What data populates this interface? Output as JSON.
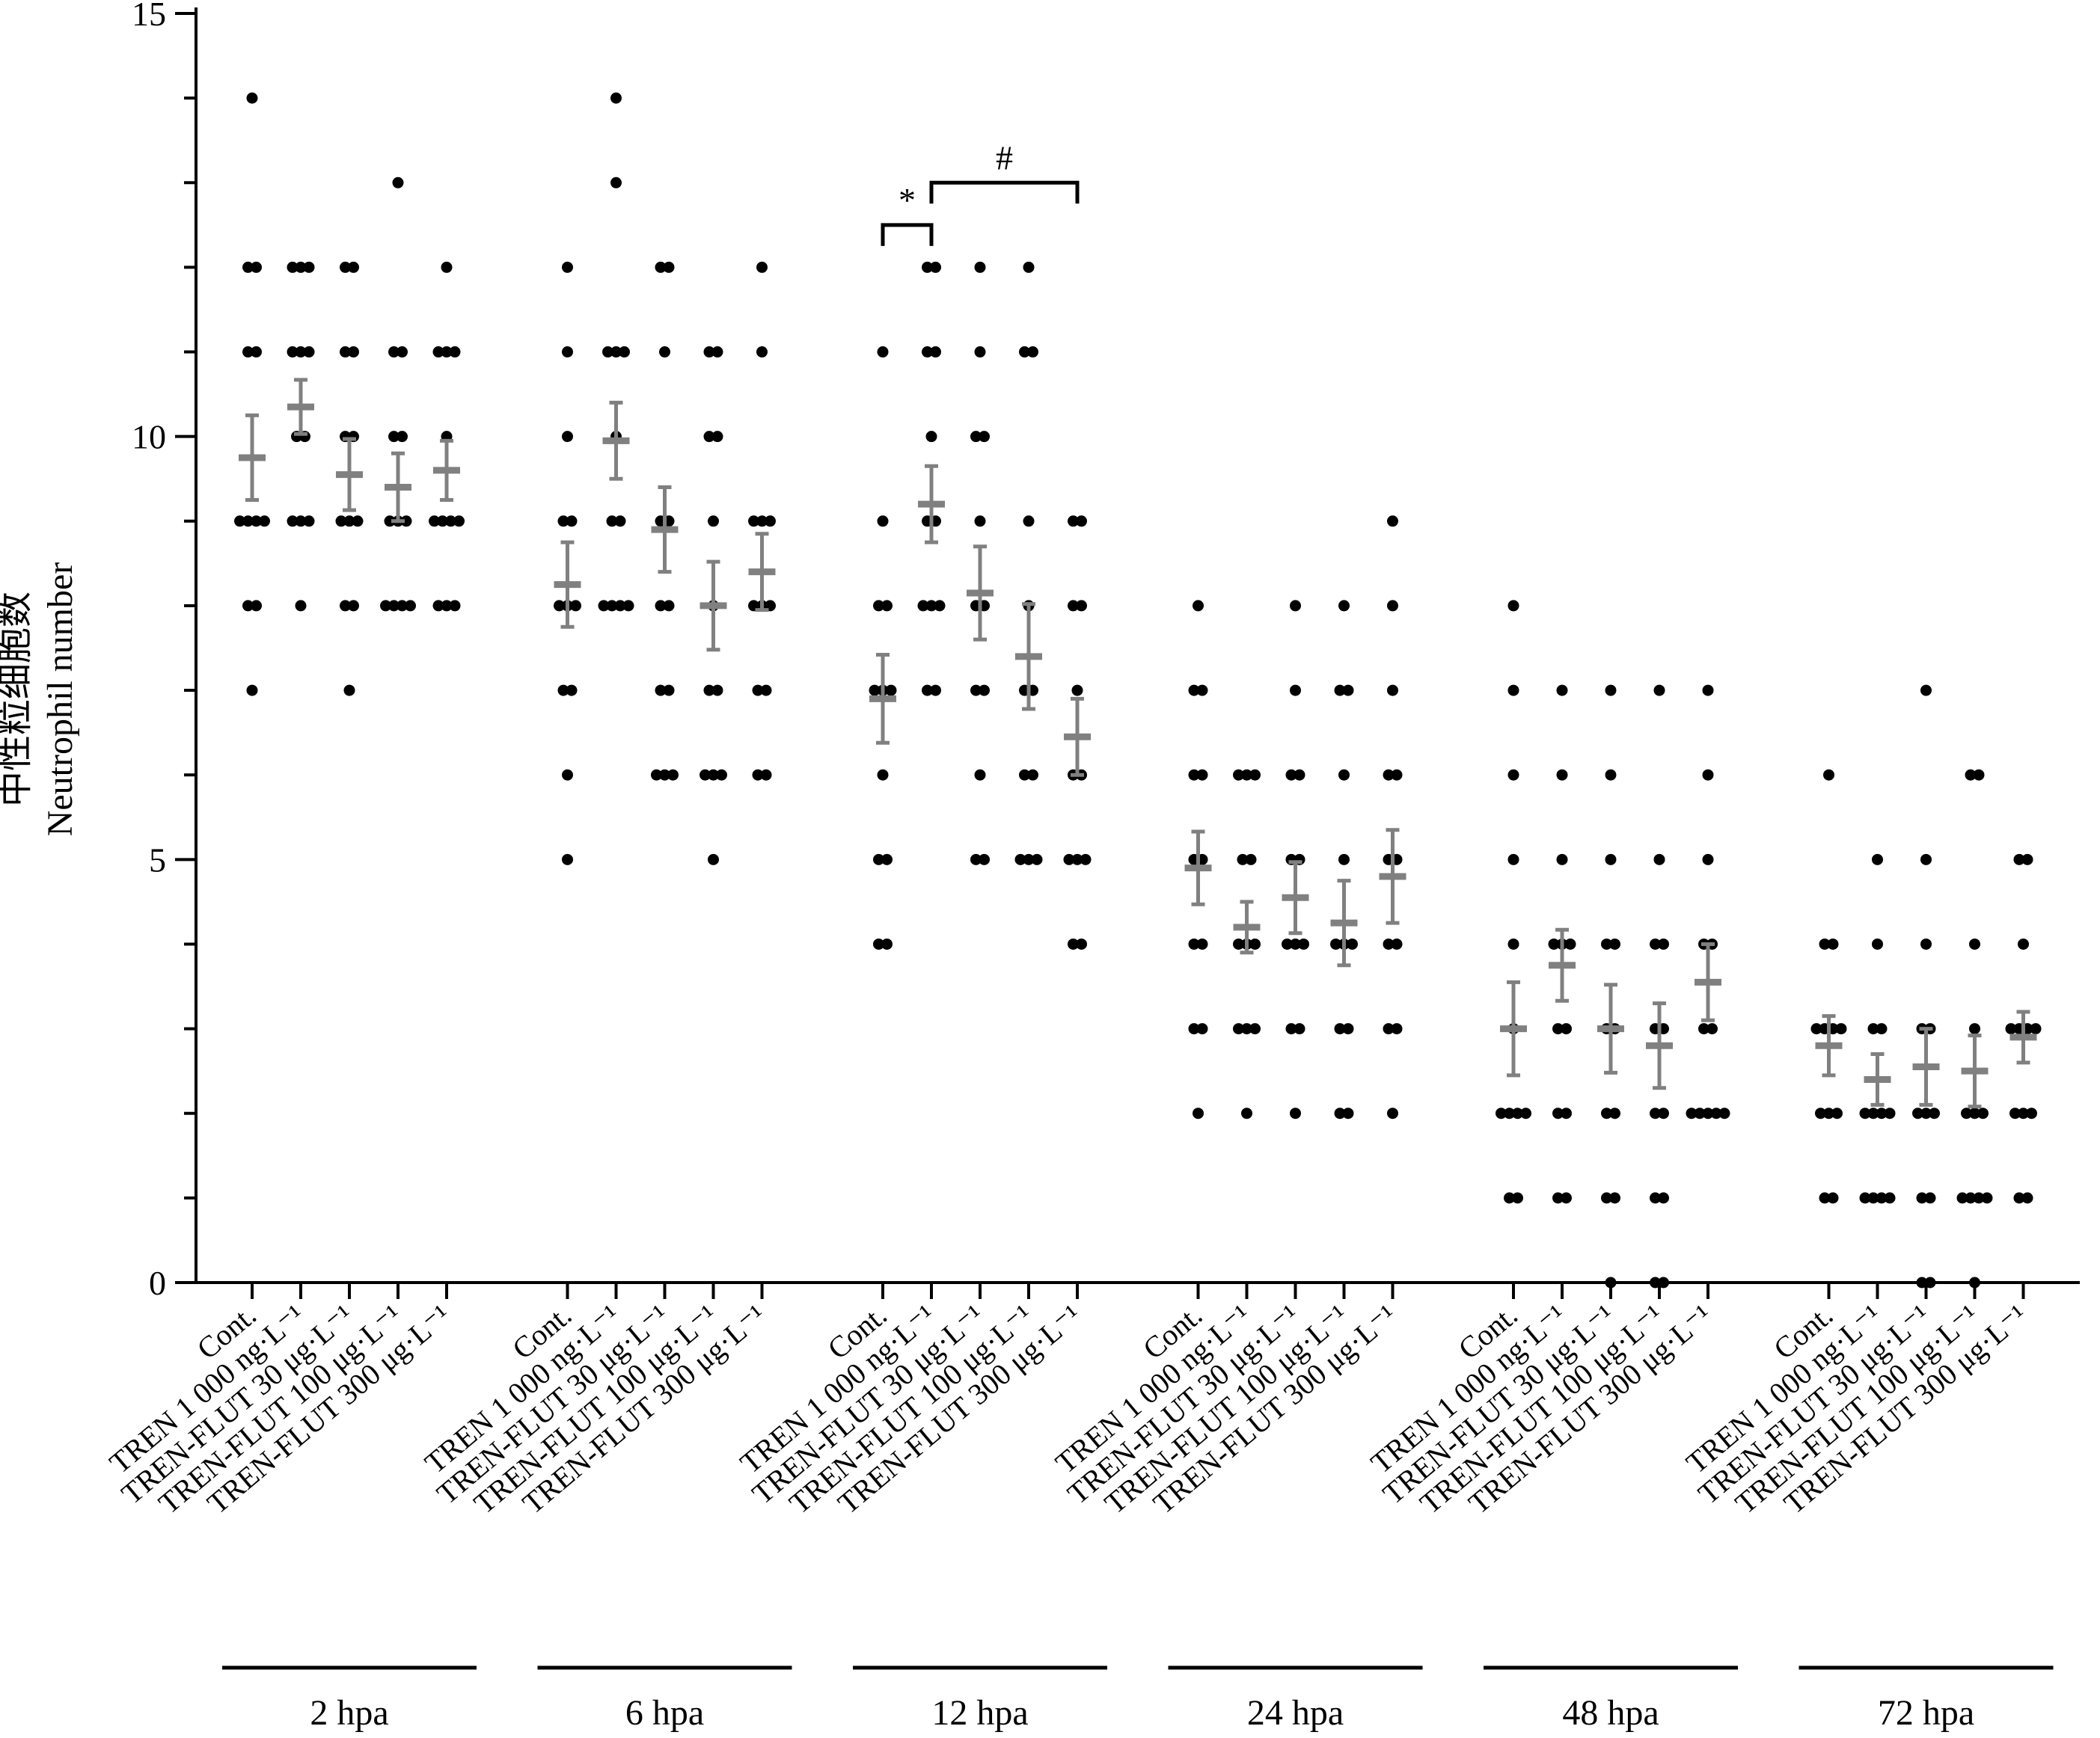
{
  "chart_data": {
    "type": "scatter",
    "y_axis": {
      "title_lines": [
        "中性粒细胞数",
        "Neutrophil number"
      ],
      "ylim": [
        0,
        15
      ],
      "ticks": [
        0,
        5,
        10,
        15
      ],
      "tick_labels": [
        "0",
        "5",
        "10",
        "15"
      ]
    },
    "categories": [
      "Cont.",
      "TREN 1 000 ng·L⁻¹",
      "TREN-FLUT 30 μg·L⁻¹",
      "TREN-FLUT 100 μg·L⁻¹",
      "TREN-FLUT 300 μg·L⁻¹"
    ],
    "colors": {
      "points": "#000000",
      "mean_sem": "#808080",
      "axis": "#000000"
    },
    "groups": [
      {
        "label": "2 hpa",
        "series": [
          {
            "points": [
              14,
              12,
              12,
              11,
              11,
              9,
              9,
              9,
              9,
              8,
              8,
              7
            ],
            "mean": 9.75,
            "sem": 0.5
          },
          {
            "points": [
              12,
              12,
              12,
              11,
              11,
              11,
              10,
              10,
              9,
              9,
              9,
              8
            ],
            "mean": 10.35,
            "sem": 0.32
          },
          {
            "points": [
              12,
              12,
              11,
              11,
              10,
              10,
              9,
              9,
              9,
              8,
              8,
              7
            ],
            "mean": 9.55,
            "sem": 0.42
          },
          {
            "points": [
              13,
              11,
              11,
              10,
              10,
              9,
              9,
              9,
              8,
              8,
              8,
              8
            ],
            "mean": 9.4,
            "sem": 0.4
          },
          {
            "points": [
              12,
              11,
              11,
              11,
              10,
              9,
              9,
              9,
              9,
              8,
              8,
              8
            ],
            "mean": 9.6,
            "sem": 0.35
          }
        ]
      },
      {
        "label": "6 hpa",
        "series": [
          {
            "points": [
              12,
              11,
              10,
              9,
              9,
              8,
              8,
              8,
              7,
              7,
              6,
              5
            ],
            "mean": 8.25,
            "sem": 0.5
          },
          {
            "points": [
              14,
              13,
              11,
              11,
              11,
              10,
              9,
              9,
              8,
              8,
              8,
              8
            ],
            "mean": 9.95,
            "sem": 0.45
          },
          {
            "points": [
              12,
              12,
              11,
              9,
              9,
              8,
              8,
              7,
              7,
              6,
              6,
              6
            ],
            "mean": 8.9,
            "sem": 0.5
          },
          {
            "points": [
              11,
              11,
              10,
              10,
              9,
              8,
              7,
              7,
              6,
              6,
              6,
              5
            ],
            "mean": 8.0,
            "sem": 0.52
          },
          {
            "points": [
              12,
              11,
              9,
              9,
              9,
              8,
              8,
              8,
              7,
              7,
              6,
              6
            ],
            "mean": 8.4,
            "sem": 0.45
          }
        ]
      },
      {
        "label": "12 hpa",
        "series": [
          {
            "points": [
              11,
              9,
              8,
              8,
              7,
              7,
              7,
              6,
              5,
              5,
              4,
              4
            ],
            "mean": 6.9,
            "sem": 0.52
          },
          {
            "points": [
              12,
              12,
              11,
              11,
              10,
              9,
              9,
              8,
              8,
              8,
              7,
              7
            ],
            "mean": 9.2,
            "sem": 0.45
          },
          {
            "points": [
              12,
              11,
              10,
              10,
              9,
              8,
              8,
              7,
              7,
              6,
              5,
              5
            ],
            "mean": 8.15,
            "sem": 0.55
          },
          {
            "points": [
              12,
              11,
              11,
              9,
              8,
              7,
              7,
              6,
              6,
              5,
              5,
              5
            ],
            "mean": 7.4,
            "sem": 0.62
          },
          {
            "points": [
              9,
              9,
              8,
              8,
              7,
              6,
              6,
              5,
              5,
              5,
              4,
              4
            ],
            "mean": 6.45,
            "sem": 0.45
          }
        ]
      },
      {
        "label": "24 hpa",
        "series": [
          {
            "points": [
              8,
              7,
              7,
              6,
              6,
              5,
              5,
              4,
              4,
              3,
              3,
              2
            ],
            "mean": 4.9,
            "sem": 0.43
          },
          {
            "points": [
              6,
              6,
              6,
              5,
              5,
              4,
              4,
              4,
              3,
              3,
              3,
              2
            ],
            "mean": 4.2,
            "sem": 0.3
          },
          {
            "points": [
              8,
              7,
              6,
              6,
              5,
              5,
              4,
              4,
              4,
              3,
              3,
              2
            ],
            "mean": 4.55,
            "sem": 0.42
          },
          {
            "points": [
              8,
              7,
              7,
              6,
              5,
              4,
              4,
              4,
              3,
              3,
              2,
              2
            ],
            "mean": 4.25,
            "sem": 0.5
          },
          {
            "points": [
              9,
              8,
              7,
              6,
              6,
              5,
              5,
              4,
              4,
              3,
              3,
              2
            ],
            "mean": 4.8,
            "sem": 0.55
          }
        ]
      },
      {
        "label": "48 hpa",
        "series": [
          {
            "points": [
              8,
              7,
              6,
              5,
              4,
              3,
              2,
              2,
              2,
              2,
              1,
              1
            ],
            "mean": 3.0,
            "sem": 0.55
          },
          {
            "points": [
              7,
              6,
              5,
              4,
              4,
              4,
              3,
              3,
              2,
              2,
              1,
              1
            ],
            "mean": 3.75,
            "sem": 0.42
          },
          {
            "points": [
              7,
              6,
              5,
              4,
              4,
              3,
              3,
              2,
              2,
              1,
              1,
              0
            ],
            "mean": 3.0,
            "sem": 0.52
          },
          {
            "points": [
              7,
              5,
              4,
              4,
              3,
              3,
              2,
              2,
              1,
              1,
              0,
              0
            ],
            "mean": 2.8,
            "sem": 0.5
          },
          {
            "points": [
              7,
              6,
              5,
              4,
              4,
              3,
              3,
              2,
              2,
              2,
              2,
              2
            ],
            "mean": 3.55,
            "sem": 0.45
          }
        ]
      },
      {
        "label": "72 hpa",
        "series": [
          {
            "points": [
              6,
              4,
              4,
              3,
              3,
              3,
              3,
              2,
              2,
              2,
              1,
              1
            ],
            "mean": 2.8,
            "sem": 0.35
          },
          {
            "points": [
              5,
              4,
              3,
              3,
              2,
              2,
              2,
              2,
              1,
              1,
              1,
              1
            ],
            "mean": 2.4,
            "sem": 0.3
          },
          {
            "points": [
              7,
              5,
              4,
              3,
              3,
              2,
              2,
              2,
              1,
              1,
              0,
              0
            ],
            "mean": 2.55,
            "sem": 0.45
          },
          {
            "points": [
              6,
              6,
              4,
              3,
              2,
              2,
              2,
              1,
              1,
              1,
              1,
              0
            ],
            "mean": 2.5,
            "sem": 0.42
          },
          {
            "points": [
              5,
              5,
              4,
              3,
              3,
              3,
              3,
              2,
              2,
              2,
              1,
              1
            ],
            "mean": 2.9,
            "sem": 0.3
          }
        ]
      }
    ],
    "annotations": [
      {
        "label": "*",
        "group": 2,
        "from": 0,
        "to": 1,
        "y": 12.5
      },
      {
        "label": "#",
        "group": 2,
        "from": 1,
        "to": 4,
        "y": 13.0
      }
    ]
  }
}
